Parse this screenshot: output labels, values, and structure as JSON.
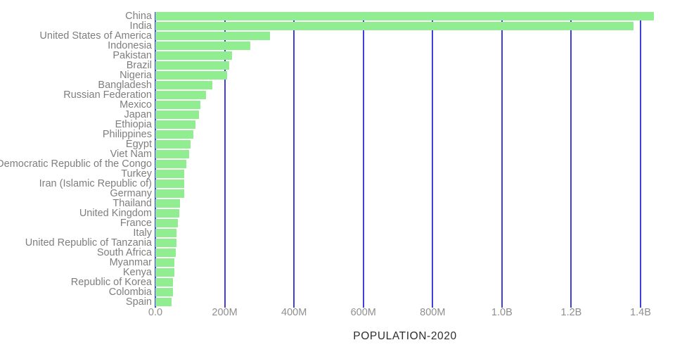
{
  "chart_data": {
    "type": "bar",
    "orientation": "horizontal",
    "title": "POPULATION-2020",
    "xlabel": "POPULATION-2020",
    "ylabel": "",
    "unit": "millions",
    "xlim_millions": [
      0,
      1450
    ],
    "grid": true,
    "categories": [
      "China",
      "India",
      "United States of America",
      "Indonesia",
      "Pakistan",
      "Brazil",
      "Nigeria",
      "Bangladesh",
      "Russian Federation",
      "Mexico",
      "Japan",
      "Ethiopia",
      "Philippines",
      "Egypt",
      "Viet Nam",
      "Democratic Republic of the Congo",
      "Turkey",
      "Iran (Islamic Republic of)",
      "Germany",
      "Thailand",
      "United Kingdom",
      "France",
      "Italy",
      "United Republic of Tanzania",
      "South Africa",
      "Myanmar",
      "Kenya",
      "Republic of Korea",
      "Colombia",
      "Spain"
    ],
    "values": [
      1439,
      1380,
      331,
      274,
      221,
      213,
      206,
      165,
      146,
      129,
      126,
      115,
      110,
      102,
      97,
      90,
      84,
      84,
      84,
      70,
      68,
      65,
      60,
      60,
      59,
      54,
      54,
      51,
      51,
      47
    ],
    "x_ticks": [
      {
        "label": "0.0",
        "millions": 0
      },
      {
        "label": "200M",
        "millions": 200
      },
      {
        "label": "400M",
        "millions": 400
      },
      {
        "label": "600M",
        "millions": 600
      },
      {
        "label": "800M",
        "millions": 800
      },
      {
        "label": "1.0B",
        "millions": 1000
      },
      {
        "label": "1.2B",
        "millions": 1200
      },
      {
        "label": "1.4B",
        "millions": 1400
      }
    ],
    "legend": null,
    "colors": {
      "bar": "#90ee90",
      "gridline": "#3f3fd9",
      "category_label": "#7e7e7e",
      "tick_label": "#8f8f8f",
      "title": "#2d2d2d",
      "background": "#ffffff"
    }
  }
}
